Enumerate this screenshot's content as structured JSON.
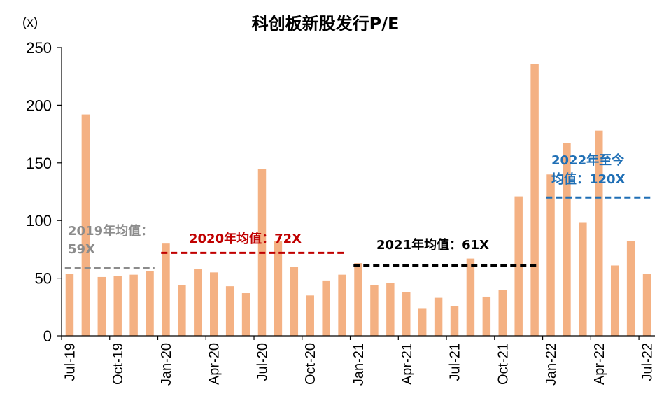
{
  "chart_data": {
    "type": "bar",
    "title": "科创板新股发行P/E",
    "unit_label": "(x)",
    "ylim": [
      0,
      250
    ],
    "yticks": [
      0,
      50,
      100,
      150,
      200,
      250
    ],
    "grid": false,
    "bar_color": "#F4B183",
    "categories": [
      "Jul-19",
      "Aug-19",
      "Sep-19",
      "Oct-19",
      "Nov-19",
      "Dec-19",
      "Jan-20",
      "Feb-20",
      "Mar-20",
      "Apr-20",
      "May-20",
      "Jun-20",
      "Jul-20",
      "Aug-20",
      "Sep-20",
      "Oct-20",
      "Nov-20",
      "Dec-20",
      "Jan-21",
      "Feb-21",
      "Mar-21",
      "Apr-21",
      "May-21",
      "Jun-21",
      "Jul-21",
      "Aug-21",
      "Sep-21",
      "Oct-21",
      "Nov-21",
      "Dec-21",
      "Jan-22",
      "Feb-22",
      "Mar-22",
      "Apr-22",
      "May-22",
      "Jun-22",
      "Jul-22"
    ],
    "values": [
      54,
      192,
      51,
      52,
      53,
      56,
      80,
      44,
      58,
      55,
      43,
      37,
      145,
      82,
      60,
      35,
      48,
      53,
      63,
      44,
      46,
      38,
      24,
      33,
      26,
      67,
      34,
      40,
      121,
      236,
      140,
      167,
      98,
      178,
      61,
      82,
      54
    ],
    "xtick_labels": [
      "Jul-19",
      "Oct-19",
      "Jan-20",
      "Apr-20",
      "Jul-20",
      "Oct-20",
      "Jan-21",
      "Apr-21",
      "Jul-21",
      "Oct-21",
      "Jan-22",
      "Apr-22",
      "Jul-22"
    ],
    "averages": [
      {
        "label_line1": "2019年均值：",
        "label_line2": "59X",
        "value": 59,
        "from": "Jul-19",
        "to": "Dec-19",
        "color": "#8C8C8C"
      },
      {
        "label_line1": "2020年均值：72X",
        "label_line2": "",
        "value": 72,
        "from": "Jan-20",
        "to": "Dec-20",
        "color": "#C00000"
      },
      {
        "label_line1": "2021年均值：61X",
        "label_line2": "",
        "value": 61,
        "from": "Jan-21",
        "to": "Dec-21",
        "color": "#000000"
      },
      {
        "label_line1": "2022年至今",
        "label_line2": "均值：120X",
        "value": 120,
        "from": "Jan-22",
        "to": "Jul-22",
        "color": "#1F6FB5"
      }
    ]
  }
}
